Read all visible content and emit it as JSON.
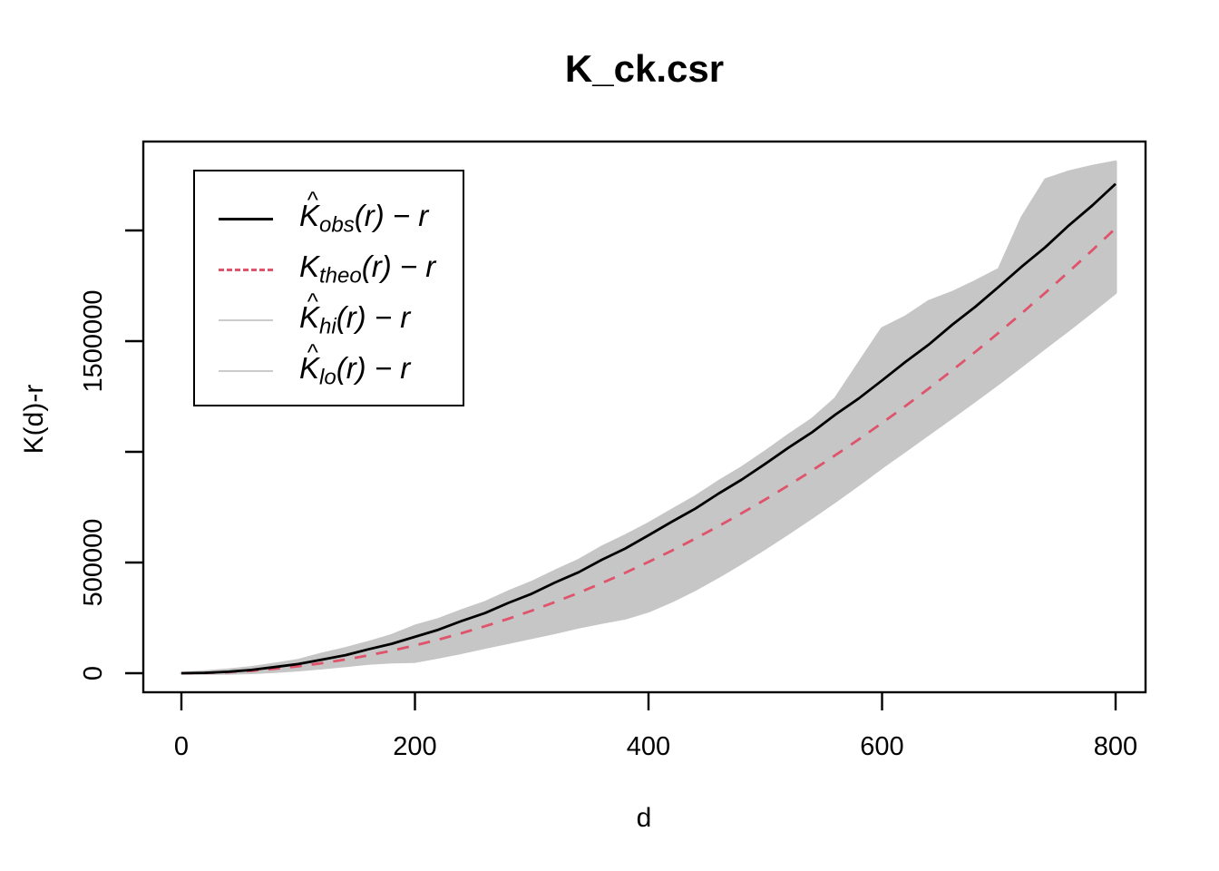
{
  "figure": {
    "title": "K_ck.csr",
    "x_axis": {
      "label": "d"
    },
    "y_axis": {
      "label": "K(d)-r"
    },
    "legend": {
      "position": "top-left",
      "items": [
        {
          "name": "obs",
          "main": "K",
          "hat": true,
          "sub": "obs",
          "rest": "(r) − r",
          "sample": {
            "color": "#000000",
            "style": "solid",
            "weight": 3
          }
        },
        {
          "name": "theo",
          "main": "K",
          "hat": false,
          "sub": "theo",
          "rest": "(r) − r",
          "sample": {
            "color": "#DF536B",
            "style": "dashed",
            "weight": 3
          }
        },
        {
          "name": "hi",
          "main": "K",
          "hat": true,
          "sub": "hi",
          "rest": "(r) − r",
          "sample": {
            "color": "#CBCBCB",
            "style": "solid",
            "weight": 2
          }
        },
        {
          "name": "lo",
          "main": "K",
          "hat": true,
          "sub": "lo",
          "rest": "(r) − r",
          "sample": {
            "color": "#CBCBCB",
            "style": "solid",
            "weight": 2
          }
        }
      ]
    },
    "colors": {
      "observed": "#000000",
      "theoretical": "#DF536B",
      "envelope_fill": "#C6C6C6",
      "axis": "#000000"
    }
  },
  "chart_data": {
    "type": "line",
    "title": "K_ck.csr",
    "xlabel": "d",
    "ylabel": "K(d)-r",
    "xlim": [
      0,
      800
    ],
    "ylim": [
      0,
      2400000
    ],
    "grid": false,
    "legend_position": "top-left",
    "x_ticks": [
      {
        "value": 0,
        "label": "0"
      },
      {
        "value": 200,
        "label": "200"
      },
      {
        "value": 400,
        "label": "400"
      },
      {
        "value": 600,
        "label": "600"
      },
      {
        "value": 800,
        "label": "800"
      }
    ],
    "y_ticks": [
      {
        "value": 0,
        "label": "0"
      },
      {
        "value": 500000,
        "label": "500000"
      },
      {
        "value": 1000000,
        "label": ""
      },
      {
        "value": 1500000,
        "label": "1500000"
      },
      {
        "value": 2000000,
        "label": ""
      }
    ],
    "x": [
      0,
      20,
      40,
      60,
      80,
      100,
      120,
      140,
      160,
      180,
      200,
      220,
      240,
      260,
      280,
      300,
      320,
      340,
      360,
      380,
      400,
      420,
      440,
      460,
      480,
      500,
      520,
      540,
      560,
      580,
      600,
      620,
      640,
      660,
      680,
      700,
      720,
      740,
      760,
      780,
      800
    ],
    "series": [
      {
        "name": "obs",
        "label": "K_obs(r) - r",
        "style": "solid",
        "color": "#000000",
        "values": [
          0,
          1600,
          6600,
          14900,
          27800,
          41500,
          61200,
          80900,
          107800,
          132600,
          164400,
          196500,
          236000,
          271800,
          317500,
          359000,
          409800,
          455600,
          512300,
          563000,
          622800,
          684500,
          743200,
          811500,
          874900,
          945800,
          1019300,
          1088200,
          1167900,
          1241000,
          1322500,
          1406100,
          1484500,
          1573900,
          1655800,
          1746400,
          1838500,
          1925400,
          2022800,
          2112600,
          2210800
        ]
      },
      {
        "name": "theo",
        "label": "K_theo(r) - r",
        "style": "dashed",
        "color": "#DF536B",
        "values": [
          0,
          1237,
          4987,
          11250,
          20026,
          31316,
          45119,
          61435,
          80265,
          101608,
          125464,
          151833,
          180716,
          212112,
          246021,
          282443,
          321379,
          362828,
          406790,
          453266,
          502255,
          553757,
          607772,
          664301,
          723343,
          784898,
          848967,
          915549,
          984644,
          1056252,
          1130373,
          1207008,
          1286156,
          1367818,
          1451992,
          1538680,
          1627882,
          1719596,
          1813824,
          1910565,
          2009819
        ]
      },
      {
        "name": "hi",
        "label": "K_hi(r) - r",
        "style": "band",
        "color": "#C6C6C6",
        "values": [
          0,
          7400,
          15200,
          26300,
          42000,
          58500,
          87000,
          111500,
          139200,
          171000,
          213000,
          243000,
          283000,
          320000,
          368000,
          411000,
          462000,
          510000,
          570000,
          621000,
          676000,
          737000,
          797000,
          866000,
          929000,
          1001000,
          1076000,
          1147000,
          1240000,
          1400000,
          1557000,
          1610000,
          1680000,
          1720000,
          1770000,
          1825000,
          2060000,
          2230000,
          2265000,
          2290000,
          2310000
        ]
      },
      {
        "name": "lo",
        "label": "K_lo(r) - r",
        "style": "band",
        "color": "#C6C6C6",
        "values": [
          0,
          -1300,
          -800,
          2200,
          7000,
          14300,
          23100,
          33400,
          44300,
          50600,
          52500,
          72000,
          93000,
          116000,
          138000,
          160500,
          183400,
          207800,
          229000,
          248300,
          280200,
          325700,
          377800,
          436300,
          499300,
          564900,
          633000,
          703500,
          776600,
          852300,
          930400,
          1005000,
          1080200,
          1155800,
          1232000,
          1309700,
          1389900,
          1471600,
          1551800,
          1634600,
          1719800
        ]
      }
    ]
  }
}
